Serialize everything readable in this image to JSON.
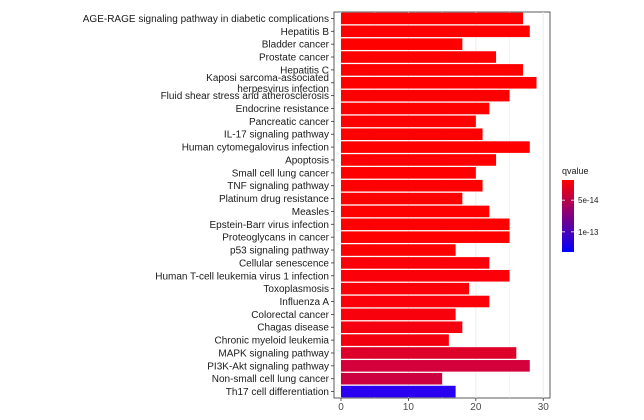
{
  "chart_data": {
    "type": "bar",
    "orientation": "horizontal",
    "grid": true,
    "legend_position": "right",
    "xlim": [
      0,
      31
    ],
    "x_ticks": [
      "0",
      "10",
      "20",
      "30"
    ],
    "categories": [
      "AGE-RAGE signaling pathway in diabetic complications",
      "Hepatitis B",
      "Bladder cancer",
      "Prostate cancer",
      "Hepatitis C",
      "Kaposi sarcoma-associated\nherpesvirus infection",
      "Fluid shear stress and atherosclerosis",
      "Endocrine resistance",
      "Pancreatic cancer",
      "IL-17 signaling pathway",
      "Human cytomegalovirus infection",
      "Apoptosis",
      "Small cell lung cancer",
      "TNF signaling pathway",
      "Platinum drug resistance",
      "Measles",
      "Epstein-Barr virus infection",
      "Proteoglycans in cancer",
      "p53 signaling pathway",
      "Cellular senescence",
      "Human T-cell leukemia virus 1 infection",
      "Toxoplasmosis",
      "Influenza A",
      "Colorectal cancer",
      "Chagas disease",
      "Chronic myeloid leukemia",
      "MAPK signaling pathway",
      "PI3K-Akt signaling pathway",
      "Non-small cell lung cancer",
      "Th17 cell differentiation"
    ],
    "values": [
      27,
      28,
      18,
      23,
      27,
      29,
      25,
      22,
      20,
      21,
      28,
      23,
      20,
      21,
      18,
      22,
      25,
      25,
      17,
      22,
      25,
      19,
      22,
      17,
      18,
      16,
      26,
      28,
      15,
      17
    ],
    "bar_colors": [
      "#ff0000",
      "#ff0000",
      "#ff0000",
      "#ff0000",
      "#ff0000",
      "#ff0000",
      "#ff0000",
      "#ff0000",
      "#ff0000",
      "#ff0000",
      "#ff0000",
      "#ff0000",
      "#ff0000",
      "#ff0000",
      "#ff0000",
      "#ff0000",
      "#ff0000",
      "#ff0000",
      "#ff0000",
      "#fb0008",
      "#fb0008",
      "#fb0008",
      "#fb0008",
      "#f8000c",
      "#f5000f",
      "#f3000f",
      "#dd0028",
      "#d3003c",
      "#cc0040",
      "#2a00f0"
    ],
    "legend": {
      "title": "qvalue",
      "ticks": [
        "5e-14",
        "1e-13"
      ],
      "tick_fractions": [
        0.28,
        0.72
      ],
      "colors": [
        "#ff0000",
        "#0000ff"
      ]
    },
    "colors": {
      "panel_bg": "#ffffff",
      "grid": "#ebebeb",
      "axis": "#333333"
    }
  }
}
